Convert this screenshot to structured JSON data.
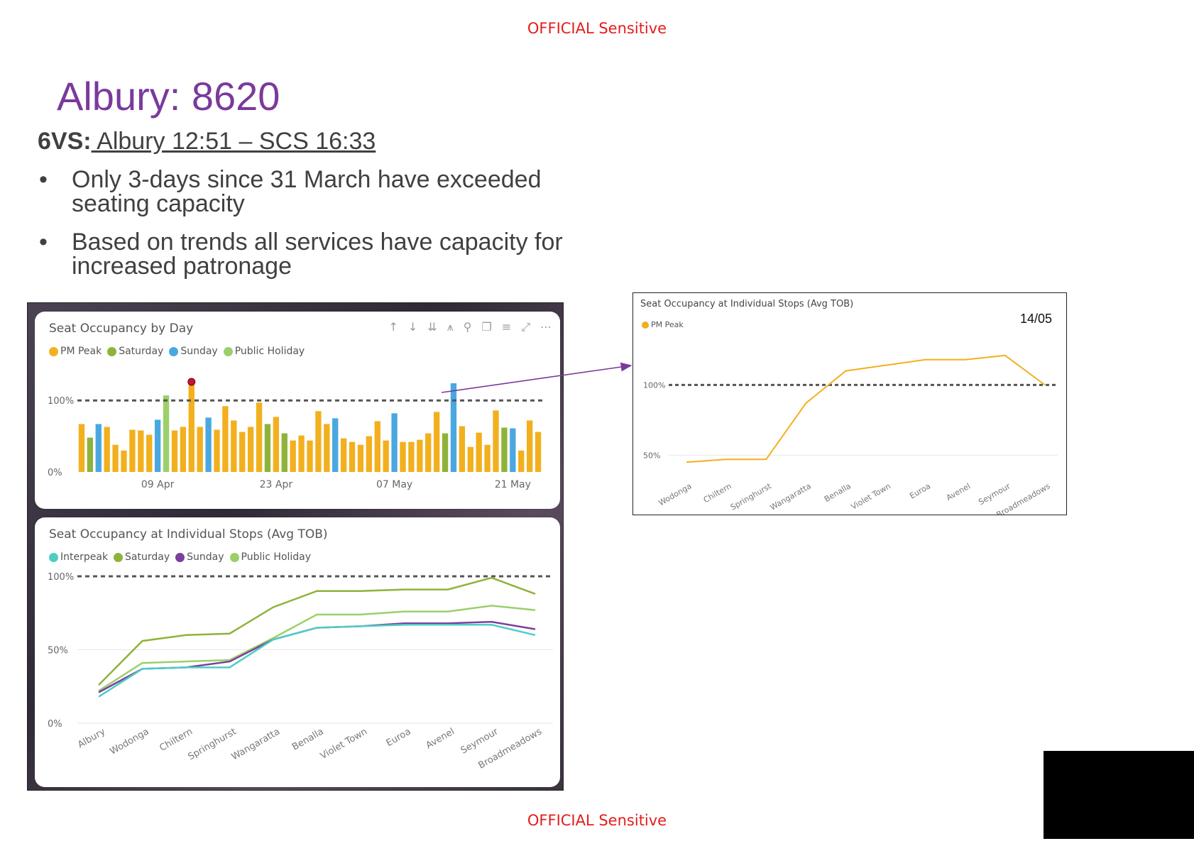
{
  "banners": {
    "top": "OFFICIAL Sensitive",
    "bottom": "OFFICIAL Sensitive"
  },
  "title": "Albury: 8620",
  "subtitle": {
    "label": "6VS:",
    "value": " Albury 12:51 – SCS 16:33"
  },
  "bullets": [
    {
      "marker": "•",
      "text": "Only 3-days since 31 March have exceeded seating capacity"
    },
    {
      "marker": "•",
      "text": "Based on trends all services have capacity for increased patronage"
    }
  ],
  "toolbar_icons": [
    "arrow-up-icon",
    "arrow-down-icon",
    "double-arrow-down-icon",
    "expand-hierarchy-icon",
    "pin-icon",
    "copy-icon",
    "filter-icon",
    "focus-mode-icon",
    "more-options-icon"
  ],
  "colors": {
    "pm_peak": "#f2b01e",
    "saturday": "#8fb33a",
    "sunday": "#4aa8e0",
    "public_holiday": "#9bcf6a",
    "interpeak": "#4ecdc4",
    "sunday_line": "#7b3fa0",
    "accent_purple": "#7a3a9c",
    "banner_red": "#e41c1c"
  },
  "chart_data": [
    {
      "type": "bar",
      "title": "Seat Occupancy by Day",
      "legend": [
        {
          "name": "PM Peak",
          "color": "#f2b01e"
        },
        {
          "name": "Saturday",
          "color": "#8fb33a"
        },
        {
          "name": "Sunday",
          "color": "#4aa8e0"
        },
        {
          "name": "Public Holiday",
          "color": "#9bcf6a"
        }
      ],
      "yticks": [
        "0%",
        "100%"
      ],
      "ylim": [
        0,
        125
      ],
      "xticks": [
        "09 Apr",
        "23 Apr",
        "07 May",
        "21 May"
      ],
      "xtick_index": [
        9,
        23,
        37,
        51
      ],
      "reference_line": 100,
      "grid": false,
      "legend_position": "top-left",
      "highlight_index": 13,
      "values": [
        67,
        48,
        67,
        63,
        38,
        30,
        59,
        58,
        52,
        73,
        107,
        58,
        63,
        125,
        63,
        76,
        59,
        92,
        72,
        56,
        63,
        97,
        67,
        77,
        54,
        44,
        51,
        44,
        85,
        67,
        75,
        47,
        42,
        38,
        50,
        71,
        44,
        82,
        42,
        42,
        45,
        54,
        84,
        54,
        124,
        64,
        35,
        55,
        38,
        86,
        62,
        61,
        30,
        72,
        56
      ],
      "types": [
        "pm",
        "sat",
        "sun",
        "pm",
        "pm",
        "pm",
        "pm",
        "pm",
        "pm",
        "sun",
        "ph",
        "pm",
        "pm",
        "pm",
        "pm",
        "sun",
        "pm",
        "pm",
        "pm",
        "pm",
        "pm",
        "pm",
        "sat",
        "pm",
        "sat",
        "pm",
        "pm",
        "pm",
        "pm",
        "pm",
        "sun",
        "pm",
        "pm",
        "pm",
        "pm",
        "pm",
        "pm",
        "sun",
        "pm",
        "pm",
        "pm",
        "pm",
        "pm",
        "sat",
        "sun",
        "pm",
        "pm",
        "pm",
        "pm",
        "pm",
        "sat",
        "sun",
        "pm",
        "pm",
        "pm"
      ]
    },
    {
      "type": "line",
      "title": "Seat Occupancy at Individual Stops (Avg TOB)",
      "legend": [
        {
          "name": "Interpeak",
          "color": "#4ecdc4"
        },
        {
          "name": "Saturday",
          "color": "#8fb33a"
        },
        {
          "name": "Sunday",
          "color": "#7b3fa0"
        },
        {
          "name": "Public Holiday",
          "color": "#9bcf6a"
        }
      ],
      "categories": [
        "Albury",
        "Wodonga",
        "Chiltern",
        "Springhurst",
        "Wangaratta",
        "Benalla",
        "Violet Town",
        "Euroa",
        "Avenel",
        "Seymour",
        "Broadmeadows"
      ],
      "yticks": [
        "0%",
        "50%",
        "100%"
      ],
      "ylim": [
        0,
        100
      ],
      "reference_line": 100,
      "grid": true,
      "legend_position": "top-left",
      "series": [
        {
          "name": "Saturday",
          "color": "#8fb33a",
          "values": [
            26,
            56,
            60,
            61,
            79,
            90,
            90,
            91,
            91,
            99,
            88
          ]
        },
        {
          "name": "Public Holiday",
          "color": "#9bcf6a",
          "values": [
            22,
            41,
            42,
            43,
            58,
            74,
            74,
            76,
            76,
            80,
            77
          ]
        },
        {
          "name": "Sunday",
          "color": "#7b3fa0",
          "values": [
            21,
            37,
            38,
            42,
            57,
            65,
            66,
            68,
            68,
            69,
            64
          ]
        },
        {
          "name": "Interpeak",
          "color": "#4ecdc4",
          "values": [
            18,
            37,
            38,
            38,
            57,
            65,
            66,
            67,
            67,
            67,
            60
          ]
        }
      ]
    },
    {
      "type": "line",
      "title": "Seat Occupancy at Individual Stops (Avg TOB)",
      "date_label": "14/05",
      "legend": [
        {
          "name": "PM Peak",
          "color": "#f2b01e"
        }
      ],
      "categories": [
        "Wodonga",
        "Chiltern",
        "Springhurst",
        "Wangaratta",
        "Benalla",
        "Violet Town",
        "Euroa",
        "Avenel",
        "Seymour",
        "Broadmeadows"
      ],
      "yticks": [
        "50%",
        "100%"
      ],
      "ylim": [
        35,
        130
      ],
      "reference_line": 100,
      "grid": true,
      "legend_position": "top-left",
      "series": [
        {
          "name": "PM Peak",
          "color": "#f2b01e",
          "values": [
            45,
            47,
            47,
            87,
            110,
            114,
            118,
            118,
            121,
            100
          ]
        }
      ]
    }
  ]
}
